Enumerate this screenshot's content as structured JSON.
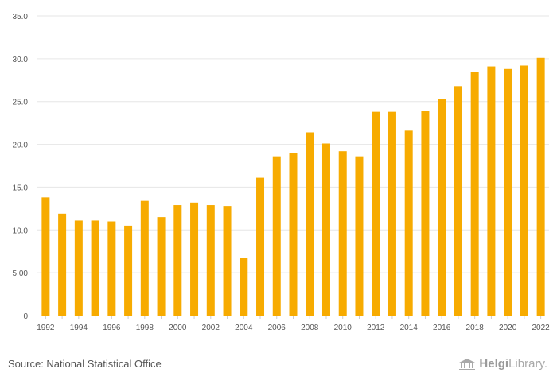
{
  "footer": {
    "source": "Source: National Statistical Office",
    "brand_bold": "Helgi",
    "brand_rest": "Library.",
    "brand_icon": "bank-building-icon"
  },
  "chart_data": {
    "type": "bar",
    "title": "",
    "xlabel": "",
    "ylabel": "",
    "categories": [
      "1992",
      "1993",
      "1994",
      "1995",
      "1996",
      "1997",
      "1998",
      "1999",
      "2000",
      "2001",
      "2002",
      "2003",
      "2004",
      "2005",
      "2006",
      "2007",
      "2008",
      "2009",
      "2010",
      "2011",
      "2012",
      "2013",
      "2014",
      "2015",
      "2016",
      "2017",
      "2018",
      "2019",
      "2020",
      "2021",
      "2022"
    ],
    "x_tick_labels": [
      "1992",
      "1994",
      "1996",
      "1998",
      "2000",
      "2002",
      "2004",
      "2006",
      "2008",
      "2010",
      "2012",
      "2014",
      "2016",
      "2018",
      "2020",
      "2022"
    ],
    "values": [
      13.8,
      11.9,
      11.1,
      11.1,
      11.0,
      10.5,
      13.4,
      11.5,
      12.9,
      13.2,
      12.9,
      12.8,
      6.7,
      16.1,
      18.6,
      19.0,
      21.4,
      20.1,
      19.2,
      18.6,
      23.8,
      23.8,
      21.6,
      23.9,
      25.3,
      26.8,
      28.5,
      29.1,
      28.8,
      29.2,
      30.1
    ],
    "ylim": [
      0,
      35
    ],
    "y_ticks": [
      0,
      5,
      10,
      15,
      20,
      25,
      30,
      35
    ],
    "y_tick_labels": [
      "0",
      "5.00",
      "10.0",
      "15.0",
      "20.0",
      "25.0",
      "30.0",
      "35.0"
    ],
    "grid": true,
    "legend": "none",
    "colors": {
      "bar": "#f7ab00",
      "grid": "#e6e6e6",
      "axis": "#cccccc",
      "tick_text": "#555555"
    }
  }
}
